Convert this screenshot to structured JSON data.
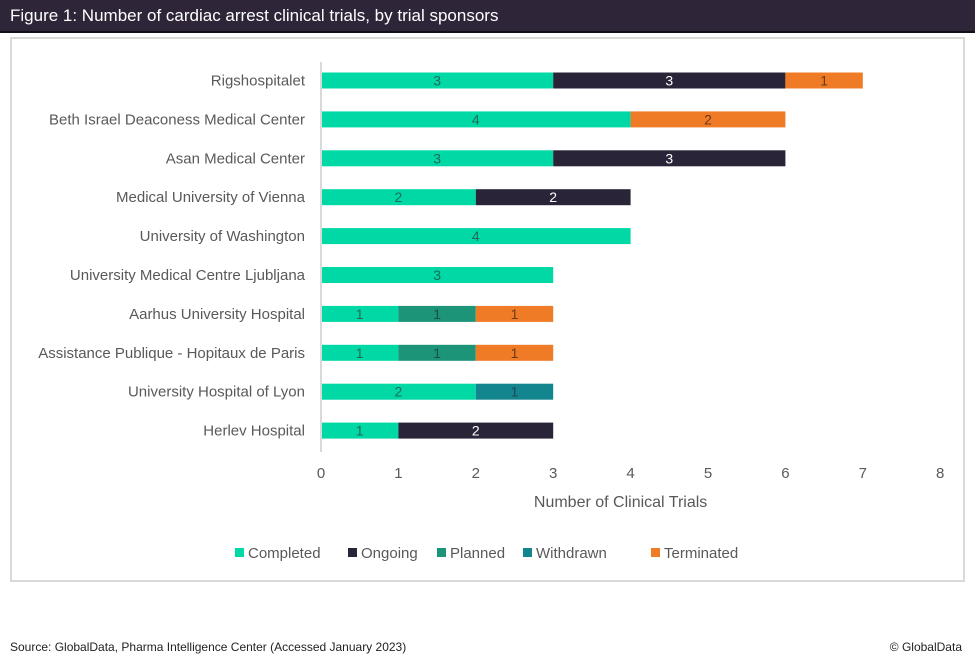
{
  "figure": {
    "title": "Figure 1: Number of cardiac arrest clinical trials, by trial sponsors"
  },
  "footer": {
    "source": "Source: GlobalData, Pharma Intelligence Center (Accessed January 2023)",
    "copyright": "© GlobalData"
  },
  "chart_data": {
    "type": "bar",
    "orientation": "horizontal",
    "stacked": true,
    "title": "Number of cardiac arrest clinical trials, by trial sponsors",
    "xlabel": "Number of Clinical Trials",
    "ylabel": "",
    "xlim": [
      0,
      8
    ],
    "xticks": [
      0,
      1,
      2,
      3,
      4,
      5,
      6,
      7,
      8
    ],
    "grid": false,
    "legend_position": "bottom",
    "categories": [
      "Rigshospitalet",
      "Beth Israel Deaconess Medical Center",
      "Asan Medical Center",
      "Medical University of Vienna",
      "University of Washington",
      "University Medical Centre Ljubljana",
      "Aarhus University Hospital",
      "Assistance Publique - Hopitaux de Paris",
      "University Hospital of Lyon",
      "Herlev Hospital"
    ],
    "series": [
      {
        "name": "Completed",
        "color": "#00d9a5",
        "label_color": "#1d6b57",
        "values": [
          3,
          4,
          3,
          2,
          4,
          3,
          1,
          1,
          2,
          1
        ]
      },
      {
        "name": "Ongoing",
        "color": "#2a2438",
        "label_color": "#ffffff",
        "values": [
          3,
          0,
          3,
          2,
          0,
          0,
          0,
          0,
          0,
          2
        ]
      },
      {
        "name": "Planned",
        "color": "#1b9478",
        "label_color": "#1e4f44",
        "values": [
          0,
          0,
          0,
          0,
          0,
          0,
          1,
          1,
          0,
          0
        ]
      },
      {
        "name": "Withdrawn",
        "color": "#13858f",
        "label_color": "#1e4a50",
        "values": [
          0,
          0,
          0,
          0,
          0,
          0,
          0,
          0,
          1,
          0
        ]
      },
      {
        "name": "Terminated",
        "color": "#f07b27",
        "label_color": "#6b3a14",
        "values": [
          1,
          2,
          0,
          0,
          0,
          0,
          1,
          1,
          0,
          0
        ]
      }
    ]
  }
}
